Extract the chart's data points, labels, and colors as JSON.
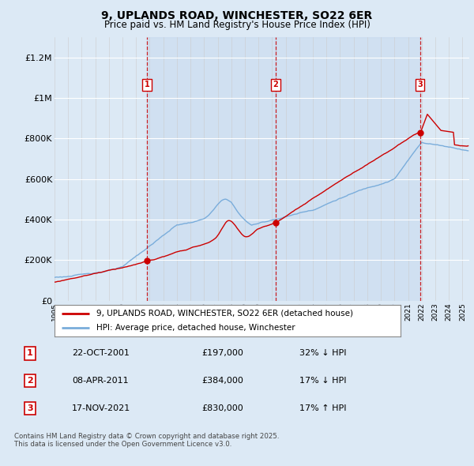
{
  "title": "9, UPLANDS ROAD, WINCHESTER, SO22 6ER",
  "subtitle": "Price paid vs. HM Land Registry's House Price Index (HPI)",
  "background_color": "#dce9f5",
  "plot_bg_color": "#dce9f5",
  "ylim": [
    0,
    1300000
  ],
  "yticks": [
    0,
    200000,
    400000,
    600000,
    800000,
    1000000,
    1200000
  ],
  "ytick_labels": [
    "£0",
    "£200K",
    "£400K",
    "£600K",
    "£800K",
    "£1M",
    "£1.2M"
  ],
  "sale_years": [
    2001.8125,
    2011.2708,
    2021.875
  ],
  "sale_prices": [
    197000,
    384000,
    830000
  ],
  "sale_labels": [
    "1",
    "2",
    "3"
  ],
  "vline_color": "#cc0000",
  "hpi_color": "#7aaddb",
  "price_color": "#cc0000",
  "legend_entries": [
    "9, UPLANDS ROAD, WINCHESTER, SO22 6ER (detached house)",
    "HPI: Average price, detached house, Winchester"
  ],
  "table_rows": [
    {
      "num": "1",
      "date": "22-OCT-2001",
      "price": "£197,000",
      "note": "32% ↓ HPI"
    },
    {
      "num": "2",
      "date": "08-APR-2011",
      "price": "£384,000",
      "note": "17% ↓ HPI"
    },
    {
      "num": "3",
      "date": "17-NOV-2021",
      "price": "£830,000",
      "note": "17% ↑ HPI"
    }
  ],
  "footnote": "Contains HM Land Registry data © Crown copyright and database right 2025.\nThis data is licensed under the Open Government Licence v3.0."
}
